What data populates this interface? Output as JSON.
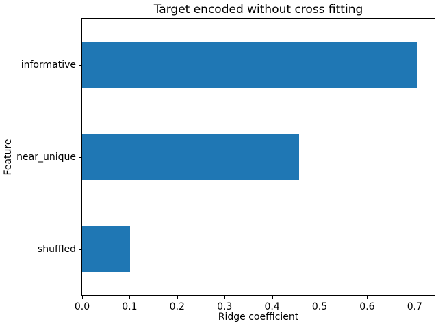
{
  "chart_data": {
    "type": "bar",
    "orientation": "horizontal",
    "title": "Target encoded without cross fitting",
    "xlabel": "Ridge coefficient",
    "ylabel": "Feature",
    "categories": [
      "informative",
      "near_unique",
      "shuffled"
    ],
    "values": [
      0.705,
      0.457,
      0.101
    ],
    "xlim": [
      0,
      0.742
    ],
    "xticks": [
      0.0,
      0.1,
      0.2,
      0.3,
      0.4,
      0.5,
      0.6,
      0.7
    ],
    "xtick_labels": [
      "0.0",
      "0.1",
      "0.2",
      "0.3",
      "0.4",
      "0.5",
      "0.6",
      "0.7"
    ],
    "bar_color": "#1f77b4",
    "bar_width_fraction": 0.5,
    "grid": false,
    "legend": null
  }
}
